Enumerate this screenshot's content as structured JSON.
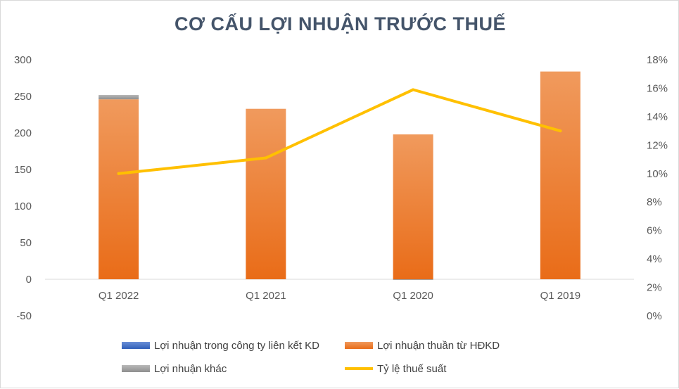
{
  "chart_data": {
    "type": "bar",
    "title": "CƠ CẤU LỢI NHUẬN TRƯỚC THUẾ",
    "categories": [
      "Q1 2022",
      "Q1 2021",
      "Q1 2020",
      "Q1 2019"
    ],
    "series": [
      {
        "name": "Lợi nhuận trong công ty liên kết KD",
        "kind": "bar",
        "axis": "left",
        "color": "#4472c4",
        "values": [
          0,
          0,
          0,
          0
        ]
      },
      {
        "name": "Lợi nhuận thuần từ HĐKD",
        "kind": "bar",
        "axis": "left",
        "color": "#ed7d31",
        "values": [
          246,
          233,
          198,
          284
        ]
      },
      {
        "name": "Lợi nhuận khác",
        "kind": "bar",
        "axis": "left",
        "color": "#a5a5a5",
        "values": [
          6,
          0,
          -1,
          0
        ]
      },
      {
        "name": "Tỷ lệ thuế suất",
        "kind": "line",
        "axis": "right",
        "color": "#ffc000",
        "values": [
          0.1,
          0.111,
          0.159,
          0.13
        ]
      }
    ],
    "y_left": {
      "min": -50,
      "max": 300,
      "ticks": [
        "300",
        "250",
        "200",
        "150",
        "100",
        "50",
        "0",
        "-50"
      ]
    },
    "y_right": {
      "min": 0,
      "max": 0.18,
      "ticks": [
        "18%",
        "16%",
        "14%",
        "12%",
        "10%",
        "8%",
        "6%",
        "4%",
        "2%",
        "0%"
      ]
    },
    "grid": false,
    "legend_position": "bottom"
  }
}
